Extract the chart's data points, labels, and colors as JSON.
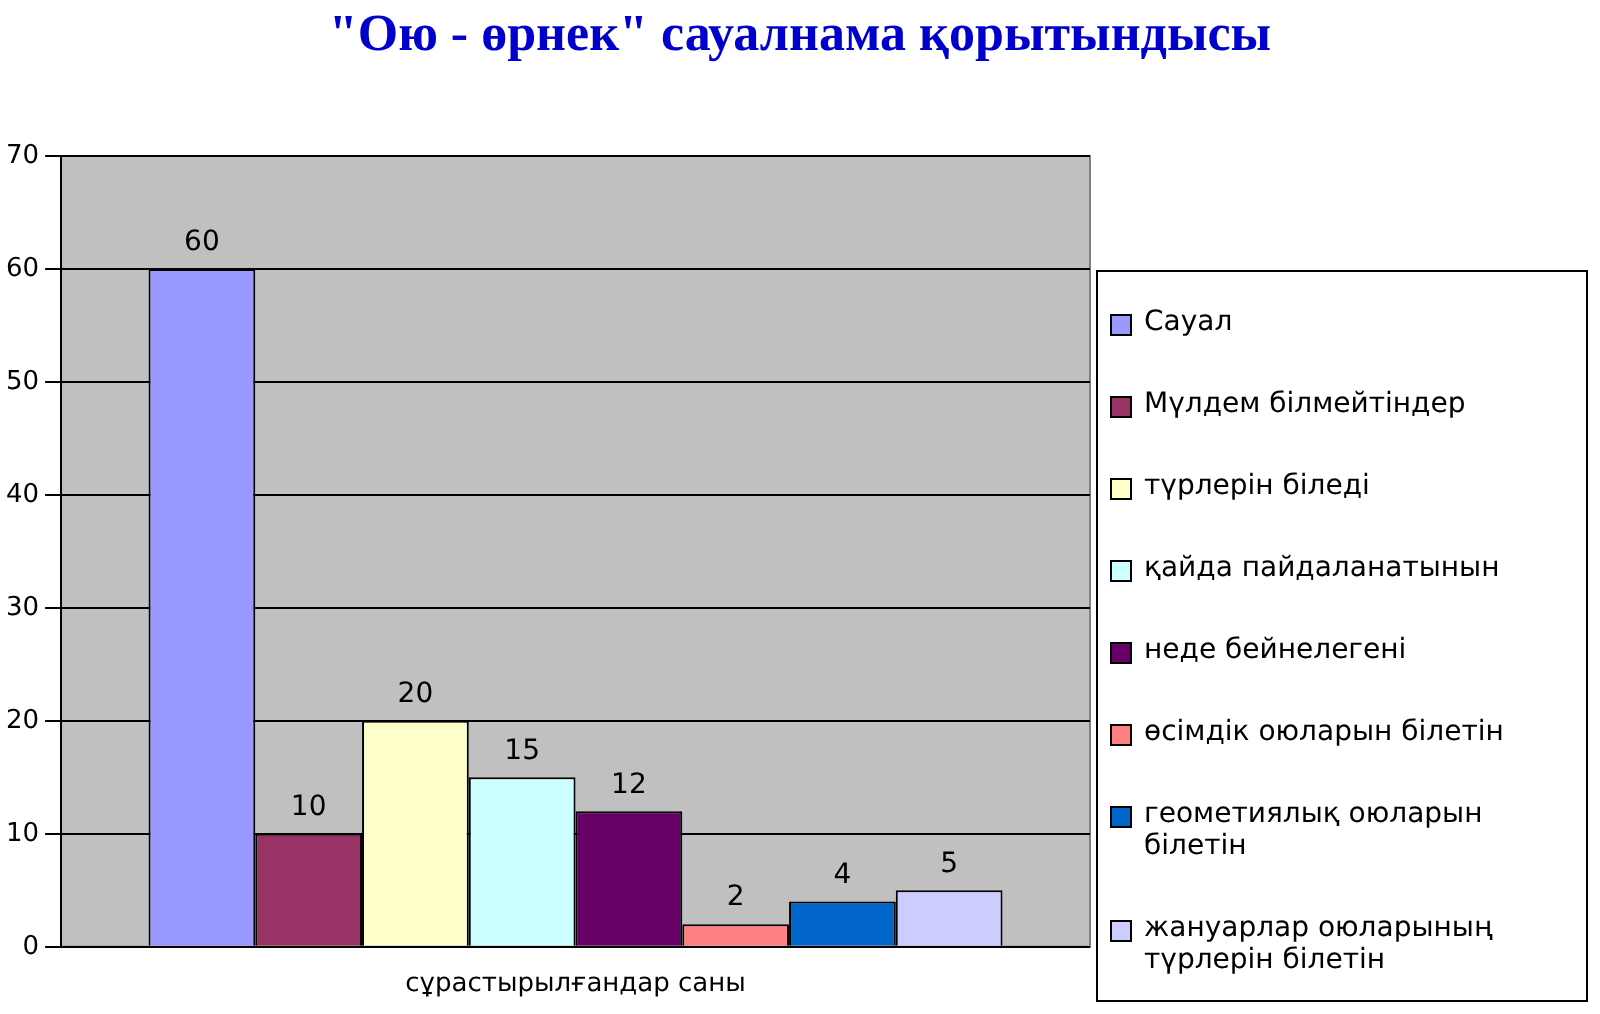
{
  "chart_data": {
    "type": "bar",
    "title": "\"Ою - өрнек\" сауалнама қорытындысы",
    "categories": [
      "сұрастырылғандар саны"
    ],
    "series": [
      {
        "name": "Сауал",
        "color": "#9999ff",
        "values": [
          60
        ]
      },
      {
        "name": "Мүлдем білмейтіндер",
        "color": "#993366",
        "values": [
          10
        ]
      },
      {
        "name": "түрлерін біледі",
        "color": "#ffffcc",
        "values": [
          20
        ]
      },
      {
        "name": "қайда пайдаланатынын",
        "color": "#ccffff",
        "values": [
          15
        ]
      },
      {
        "name": "неде бейнелегені",
        "color": "#660066",
        "values": [
          12
        ]
      },
      {
        "name": "өсімдік оюларын білетін",
        "color": "#ff8080",
        "values": [
          2
        ]
      },
      {
        "name": "геометиялық оюларын білетін",
        "color": "#0066cc",
        "values": [
          4
        ]
      },
      {
        "name": "жануарлар оюларының түрлерін білетін",
        "color": "#ccccff",
        "values": [
          5
        ]
      }
    ],
    "ylim": [
      0,
      70
    ],
    "yticks": [
      0,
      10,
      20,
      30,
      40,
      50,
      60,
      70
    ],
    "grid": "y",
    "legend": "right",
    "data_labels": true
  }
}
